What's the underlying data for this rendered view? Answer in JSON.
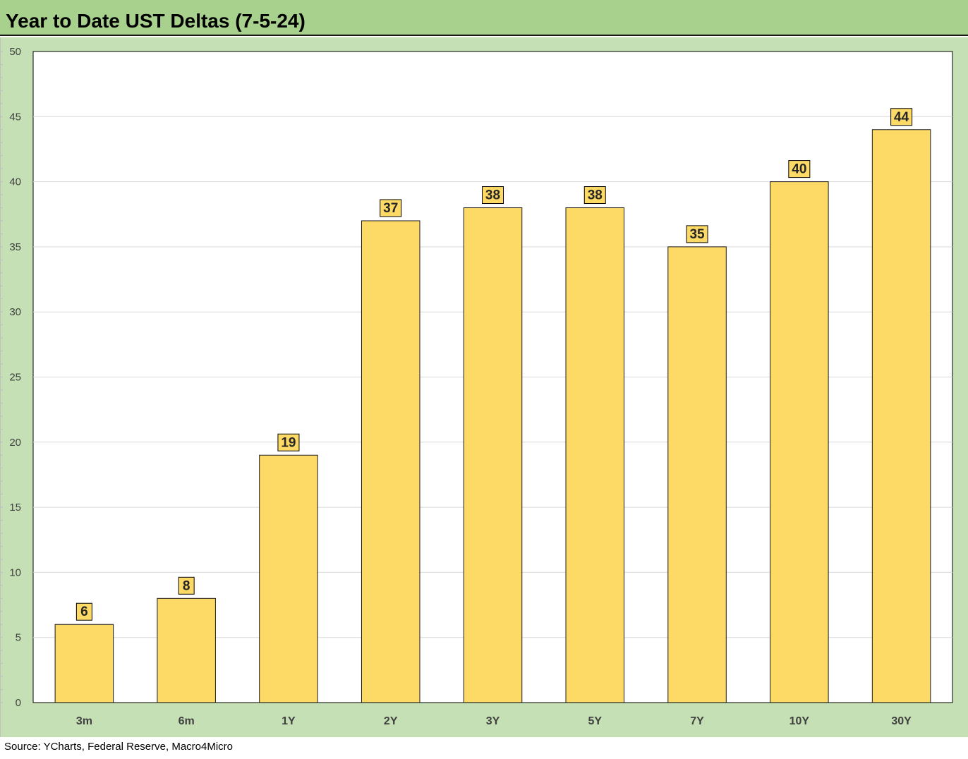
{
  "title": "Year to Date UST Deltas (7-5-24)",
  "source": "Source: YCharts, Federal Reserve, Macro4Micro",
  "colors": {
    "header_bg": "#a9d18e",
    "panel_bg": "#c5e0b4",
    "plot_bg": "#ffffff",
    "bar_fill": "#fdd966",
    "bar_stroke": "#1a1a1a",
    "label_fill": "#fdd966",
    "gridline": "#d9d9d9",
    "axis_text": "#404040"
  },
  "chart_data": {
    "type": "bar",
    "title": "Year to Date UST Deltas (7-5-24)",
    "categories": [
      "3m",
      "6m",
      "1Y",
      "2Y",
      "3Y",
      "5Y",
      "7Y",
      "10Y",
      "30Y"
    ],
    "values": [
      6,
      8,
      19,
      37,
      38,
      38,
      35,
      40,
      44
    ],
    "data_labels": [
      "6",
      "8",
      "19",
      "37",
      "38",
      "38",
      "35",
      "40",
      "44"
    ],
    "ylim": [
      0,
      50
    ],
    "yticks": [
      0,
      5,
      10,
      15,
      20,
      25,
      30,
      35,
      40,
      45,
      50
    ],
    "ytick_labels": [
      "0",
      "5",
      "10",
      "15",
      "20",
      "25",
      "30",
      "35",
      "40",
      "45",
      "50"
    ],
    "xlabel": "",
    "ylabel": "",
    "grid": true,
    "legend": "none"
  }
}
